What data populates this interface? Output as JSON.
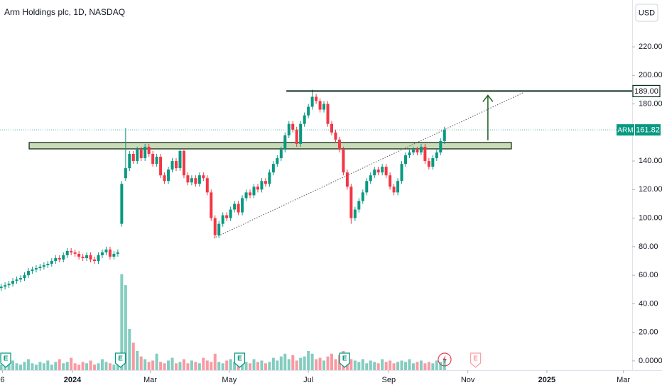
{
  "chart_data": {
    "type": "candlestick",
    "title": "Arm Holdings plc, 1D, NASDAQ",
    "currency": "USD",
    "up_color": "#089981",
    "down_color": "#f23645",
    "x": [
      -55,
      -52,
      -49,
      -46,
      -43,
      -40,
      -37,
      -34,
      -31,
      -28,
      -25,
      -22,
      -19,
      -16,
      -13,
      -10,
      -7,
      -4,
      -1,
      2,
      5,
      8,
      11,
      14,
      17,
      20,
      23,
      26,
      29,
      32,
      35,
      38,
      41,
      44,
      47,
      50,
      53,
      56,
      59,
      62,
      65,
      68,
      71,
      74,
      77,
      80,
      83,
      86,
      89,
      92,
      95,
      98,
      101,
      104,
      107,
      110,
      113,
      116,
      119,
      122,
      125,
      128,
      131,
      134,
      137,
      140,
      143,
      146,
      149,
      152,
      155,
      158,
      161,
      164,
      167,
      170,
      173,
      176,
      179,
      182,
      185,
      188,
      191,
      194,
      197,
      200,
      203,
      206,
      209,
      212,
      215,
      218,
      221,
      224,
      227,
      230,
      233,
      236,
      239,
      242,
      245,
      248,
      251,
      254,
      257,
      260,
      263,
      266,
      269,
      272,
      275,
      278,
      281,
      284,
      287
    ],
    "open": [
      51,
      52,
      53,
      54,
      56,
      57,
      58,
      60,
      63,
      64,
      65,
      66,
      67,
      68,
      70,
      72,
      71,
      74,
      77,
      76,
      75,
      73,
      72,
      74,
      71,
      70,
      74,
      76,
      78,
      73,
      75,
      96,
      128,
      135,
      145,
      140,
      148,
      142,
      150,
      145,
      138,
      143,
      130,
      126,
      134,
      140,
      135,
      147,
      130,
      125,
      128,
      124,
      130,
      128,
      118,
      100,
      88,
      96,
      102,
      100,
      106,
      110,
      104,
      114,
      118,
      116,
      122,
      120,
      126,
      124,
      132,
      138,
      142,
      148,
      158,
      166,
      162,
      152,
      166,
      172,
      178,
      185,
      182,
      176,
      180,
      166,
      160,
      155,
      148,
      132,
      122,
      100,
      106,
      112,
      118,
      126,
      130,
      134,
      132,
      136,
      130,
      122,
      118,
      126,
      138,
      144,
      146,
      148,
      146,
      150,
      140,
      136,
      142,
      146,
      154
    ],
    "high": [
      54,
      55,
      56,
      58,
      59,
      60,
      62,
      65,
      66,
      67,
      68,
      69,
      70,
      72,
      74,
      74,
      76,
      79,
      79,
      78,
      77,
      75,
      76,
      76,
      73,
      76,
      78,
      80,
      80,
      77,
      78,
      126,
      163,
      147,
      147,
      150,
      150,
      152,
      152,
      147,
      145,
      145,
      132,
      136,
      142,
      142,
      149,
      149,
      132,
      130,
      130,
      132,
      132,
      130,
      120,
      102,
      98,
      104,
      104,
      108,
      112,
      112,
      116,
      120,
      120,
      124,
      124,
      128,
      128,
      134,
      140,
      144,
      150,
      160,
      168,
      168,
      164,
      168,
      174,
      180,
      190,
      187,
      184,
      182,
      182,
      168,
      162,
      157,
      150,
      134,
      124,
      108,
      114,
      120,
      128,
      132,
      136,
      136,
      138,
      138,
      132,
      124,
      128,
      140,
      146,
      148,
      150,
      150,
      152,
      152,
      142,
      144,
      148,
      156,
      164
    ],
    "low": [
      49,
      50,
      51,
      52,
      54,
      55,
      56,
      58,
      61,
      62,
      63,
      64,
      65,
      66,
      68,
      69,
      69,
      72,
      74,
      73,
      71,
      70,
      70,
      69,
      68,
      68,
      72,
      74,
      71,
      71,
      73,
      94,
      126,
      133,
      138,
      138,
      140,
      140,
      143,
      136,
      136,
      128,
      124,
      124,
      132,
      133,
      133,
      128,
      123,
      123,
      122,
      122,
      126,
      116,
      98,
      86,
      86,
      94,
      98,
      98,
      104,
      102,
      102,
      112,
      114,
      114,
      118,
      118,
      122,
      122,
      130,
      136,
      140,
      146,
      156,
      160,
      150,
      150,
      164,
      170,
      176,
      180,
      174,
      174,
      164,
      158,
      153,
      146,
      130,
      120,
      96,
      98,
      104,
      110,
      116,
      124,
      128,
      130,
      130,
      128,
      120,
      116,
      116,
      124,
      136,
      142,
      144,
      144,
      144,
      138,
      134,
      134,
      140,
      144,
      152
    ],
    "close": [
      52,
      53,
      54,
      56,
      57,
      58,
      60,
      63,
      64,
      65,
      66,
      67,
      68,
      70,
      72,
      71,
      74,
      77,
      76,
      75,
      73,
      72,
      74,
      71,
      70,
      74,
      76,
      78,
      73,
      75,
      76,
      124,
      135,
      145,
      140,
      148,
      142,
      150,
      145,
      138,
      143,
      130,
      126,
      134,
      140,
      135,
      147,
      130,
      125,
      128,
      124,
      130,
      128,
      118,
      100,
      88,
      96,
      102,
      100,
      106,
      110,
      104,
      114,
      118,
      116,
      122,
      120,
      126,
      124,
      132,
      138,
      142,
      148,
      158,
      166,
      162,
      152,
      166,
      172,
      178,
      185,
      182,
      176,
      180,
      166,
      160,
      155,
      148,
      132,
      122,
      100,
      106,
      112,
      118,
      126,
      130,
      134,
      132,
      136,
      130,
      122,
      118,
      126,
      138,
      144,
      146,
      148,
      146,
      150,
      140,
      136,
      142,
      146,
      154,
      161.82
    ],
    "volume": [
      4,
      6,
      5,
      7,
      5,
      4,
      6,
      8,
      5,
      4,
      6,
      5,
      7,
      4,
      6,
      8,
      5,
      6,
      9,
      5,
      4,
      6,
      5,
      7,
      4,
      5,
      8,
      6,
      5,
      4,
      6,
      70,
      62,
      30,
      20,
      14,
      10,
      8,
      6,
      7,
      12,
      6,
      5,
      7,
      9,
      5,
      6,
      8,
      5,
      7,
      6,
      5,
      9,
      7,
      6,
      12,
      6,
      5,
      7,
      8,
      6,
      5,
      7,
      6,
      5,
      8,
      6,
      7,
      5,
      6,
      9,
      7,
      10,
      12,
      8,
      11,
      7,
      9,
      10,
      14,
      12,
      8,
      9,
      7,
      10,
      12,
      8,
      11,
      14,
      9,
      8,
      7,
      6,
      8,
      5,
      7,
      6,
      5,
      8,
      6,
      7,
      5,
      6,
      7,
      6,
      8,
      5,
      6,
      7,
      5,
      6,
      5,
      7,
      6,
      8
    ],
    "volume_lim": [
      0,
      270
    ],
    "xlim": [
      -55.9,
      431.8
    ],
    "xticks": [
      {
        "value": -54,
        "label": "6"
      },
      {
        "value": 0,
        "label": "2024"
      },
      {
        "value": 60,
        "label": "Mar"
      },
      {
        "value": 121,
        "label": "May"
      },
      {
        "value": 182,
        "label": "Jul"
      },
      {
        "value": 244,
        "label": "Sep"
      },
      {
        "value": 305,
        "label": "Nov"
      },
      {
        "value": 366,
        "label": "2025"
      },
      {
        "value": 425,
        "label": "Mar"
      }
    ],
    "ylim": [
      -6.5,
      252.8
    ],
    "yticks": [
      {
        "value": 0,
        "label": "0.0000"
      },
      {
        "value": 20,
        "label": "20.00"
      },
      {
        "value": 40,
        "label": "40.00"
      },
      {
        "value": 60,
        "label": "60.00"
      },
      {
        "value": 80,
        "label": "80.00"
      },
      {
        "value": 100,
        "label": "100.00"
      },
      {
        "value": 120,
        "label": "120.00"
      },
      {
        "value": 140,
        "label": "140.00"
      },
      {
        "value": 180,
        "label": "180.00"
      },
      {
        "value": 200,
        "label": "200.00"
      },
      {
        "value": 220,
        "label": "220.00"
      }
    ],
    "last_price": {
      "symbol": "ARM",
      "value": 161.82,
      "color": "#089981"
    },
    "resistance": {
      "x": [
        165,
        432
      ],
      "value": 189,
      "label": "189.00",
      "color": "#0b2e1c"
    },
    "support_zone": {
      "x": [
        -33.4,
        338.6
      ],
      "y": [
        148.5,
        153
      ],
      "color": "#c8dcb8"
    },
    "trendline": {
      "x": [
        109,
        348
      ],
      "y": [
        86,
        188
      ]
    },
    "arrow": {
      "x": 320.5,
      "y": [
        154.5,
        186
      ],
      "color": "#1b5e20"
    },
    "events": [
      {
        "x": -51.5,
        "label": "E",
        "color": "#089981"
      },
      {
        "x": 37,
        "label": "E",
        "color": "#089981"
      },
      {
        "x": 129,
        "label": "E",
        "color": "#089981"
      },
      {
        "x": 210,
        "label": "E",
        "color": "#089981"
      },
      {
        "x": 311,
        "label": "E",
        "color": "#f7a1a8"
      }
    ]
  }
}
